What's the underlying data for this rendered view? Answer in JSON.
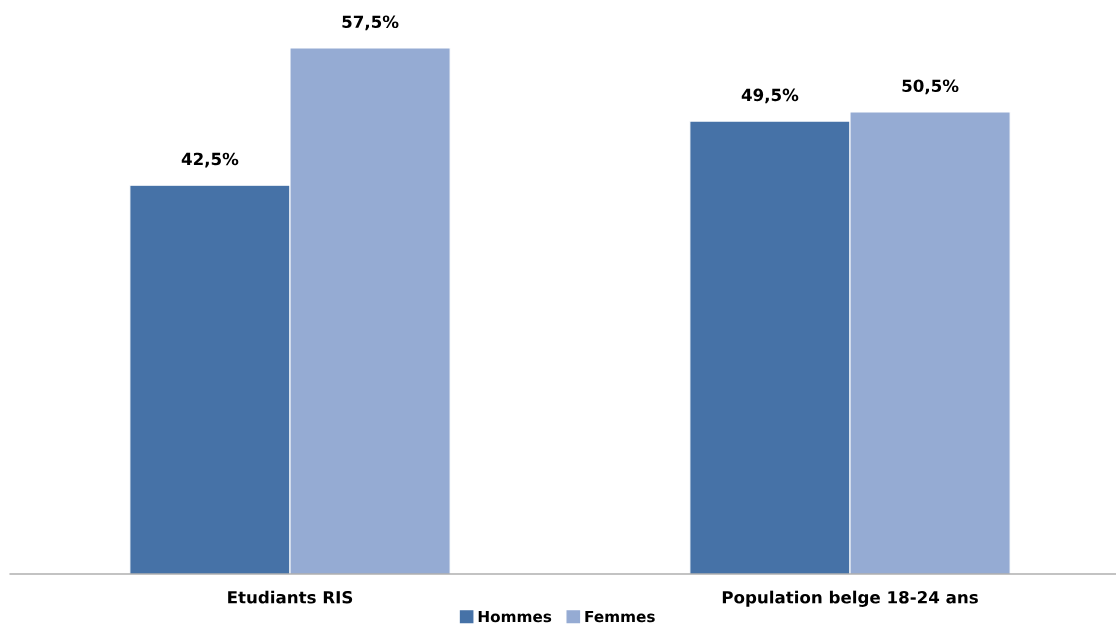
{
  "chart_data": {
    "type": "bar",
    "categories": [
      "Etudiants RIS",
      "Population belge 18-24 ans"
    ],
    "series": [
      {
        "name": "Hommes",
        "color": "#4672a7",
        "values": [
          42.5,
          49.5
        ],
        "value_labels": [
          "42,5%",
          "49,5%"
        ]
      },
      {
        "name": "Femmes",
        "color": "#95abd3",
        "values": [
          57.5,
          50.5
        ],
        "value_labels": [
          "57,5%",
          "50,5%"
        ]
      }
    ],
    "legend": "bottom"
  }
}
